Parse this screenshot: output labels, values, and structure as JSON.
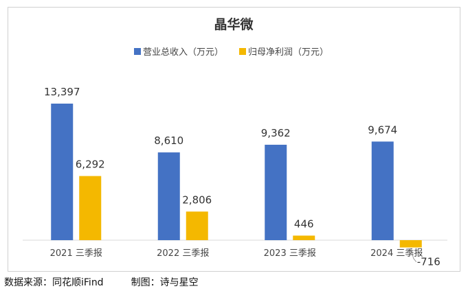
{
  "chart_data": {
    "type": "bar",
    "title": "晶华微",
    "categories": [
      "2021 三季报",
      "2022 三季报",
      "2023 三季报",
      "2024 三季报"
    ],
    "series": [
      {
        "name": "营业总收入（万元）",
        "values": [
          13397,
          8610,
          9362,
          9674
        ],
        "labels": [
          "13,397",
          "8,610",
          "9,362",
          "9,674"
        ],
        "color": "#4472C4"
      },
      {
        "name": "归母净利润（万元）",
        "values": [
          6292,
          2806,
          446,
          -716
        ],
        "labels": [
          "6,292",
          "2,806",
          "446",
          "-716"
        ],
        "color": "#F4B800"
      }
    ],
    "ylim": [
      -900,
      15000
    ],
    "grid": false,
    "legend_position": "top-center"
  },
  "footer": {
    "source": "数据来源：同花顺iFind",
    "maker": "制图：诗与星空"
  }
}
